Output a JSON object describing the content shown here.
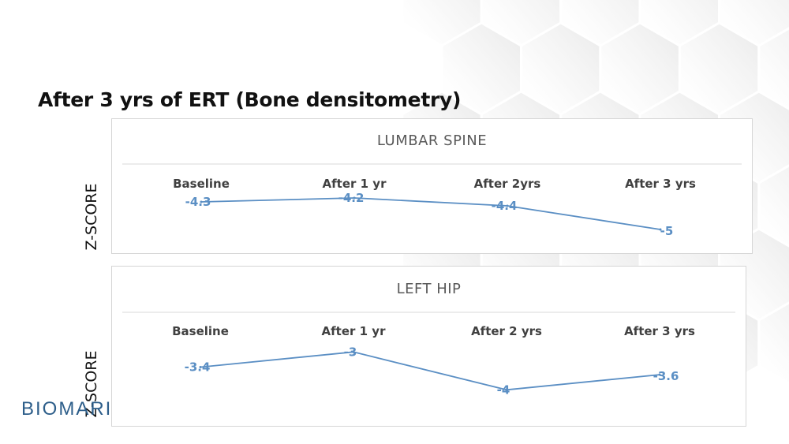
{
  "slide": {
    "title": "After 3 yrs of ERT (Bone densitometry)"
  },
  "logo": {
    "text": "BIOMARI"
  },
  "colors": {
    "line": "#5b8fc4",
    "label": "#5b8fc4",
    "title": "#595959",
    "axis_text": "#404040"
  },
  "chart_data": [
    {
      "type": "line",
      "title": "LUMBAR SPINE",
      "ylabel": "Z-SCORE",
      "categories": [
        "Baseline",
        "After 1 yr",
        "After 2yrs",
        "After 3 yrs"
      ],
      "series": [
        {
          "values": [
            -4.3,
            -4.2,
            -4.4,
            -5
          ]
        }
      ],
      "data_labels": [
        "-4.3",
        "-4.2",
        "-4.4",
        "-5"
      ],
      "ylim": [
        -5.6,
        -3.4
      ],
      "grid": false
    },
    {
      "type": "line",
      "title": "LEFT HIP",
      "ylabel": "Z-SCORE",
      "categories": [
        "Baseline",
        "After 1 yr",
        "After 2 yrs",
        "After 3 yrs"
      ],
      "series": [
        {
          "values": [
            -3.4,
            -3,
            -4,
            -3.6
          ]
        }
      ],
      "data_labels": [
        "-3.4",
        "-3",
        "-4",
        "-3.6"
      ],
      "ylim": [
        -4.6,
        -2.2
      ],
      "grid": false
    }
  ]
}
